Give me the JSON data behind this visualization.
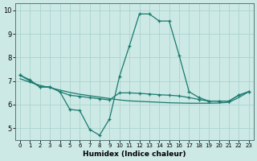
{
  "title": "",
  "xlabel": "Humidex (Indice chaleur)",
  "bg_color": "#cce9e5",
  "line_color": "#1a7a6e",
  "grid_color": "#aad4cf",
  "xlim": [
    -0.5,
    23.5
  ],
  "ylim": [
    4.5,
    10.3
  ],
  "yticks": [
    5,
    6,
    7,
    8,
    9,
    10
  ],
  "xticks": [
    0,
    1,
    2,
    3,
    4,
    5,
    6,
    7,
    8,
    9,
    10,
    11,
    12,
    13,
    14,
    15,
    16,
    17,
    18,
    19,
    20,
    21,
    22,
    23
  ],
  "line1_x": [
    0,
    1,
    2,
    3,
    4,
    5,
    6,
    7,
    8,
    9,
    10,
    11,
    12,
    13,
    14,
    15,
    16,
    17,
    18,
    19,
    20,
    21,
    22,
    23
  ],
  "line1_y": [
    7.25,
    7.05,
    6.75,
    6.75,
    6.55,
    5.8,
    5.75,
    4.95,
    4.7,
    5.4,
    7.2,
    8.5,
    9.85,
    9.85,
    9.55,
    9.55,
    8.1,
    6.55,
    6.3,
    6.15,
    6.15,
    6.15,
    6.4,
    6.55
  ],
  "line2_x": [
    0,
    1,
    2,
    3,
    4,
    5,
    6,
    7,
    8,
    9,
    10,
    11,
    12,
    13,
    14,
    15,
    16,
    17,
    18,
    19,
    20,
    21,
    22,
    23
  ],
  "line2_y": [
    7.25,
    7.0,
    6.75,
    6.75,
    6.55,
    6.4,
    6.35,
    6.3,
    6.25,
    6.2,
    6.5,
    6.5,
    6.48,
    6.45,
    6.42,
    6.4,
    6.37,
    6.3,
    6.22,
    6.15,
    6.15,
    6.15,
    6.4,
    6.55
  ],
  "line3_x": [
    0,
    1,
    2,
    3,
    4,
    5,
    6,
    7,
    8,
    9,
    10,
    11,
    12,
    13,
    14,
    15,
    16,
    17,
    18,
    19,
    20,
    21,
    22,
    23
  ],
  "line3_y": [
    7.1,
    6.95,
    6.82,
    6.72,
    6.62,
    6.52,
    6.44,
    6.38,
    6.32,
    6.26,
    6.2,
    6.16,
    6.14,
    6.12,
    6.1,
    6.08,
    6.07,
    6.06,
    6.06,
    6.06,
    6.07,
    6.1,
    6.3,
    6.55
  ]
}
